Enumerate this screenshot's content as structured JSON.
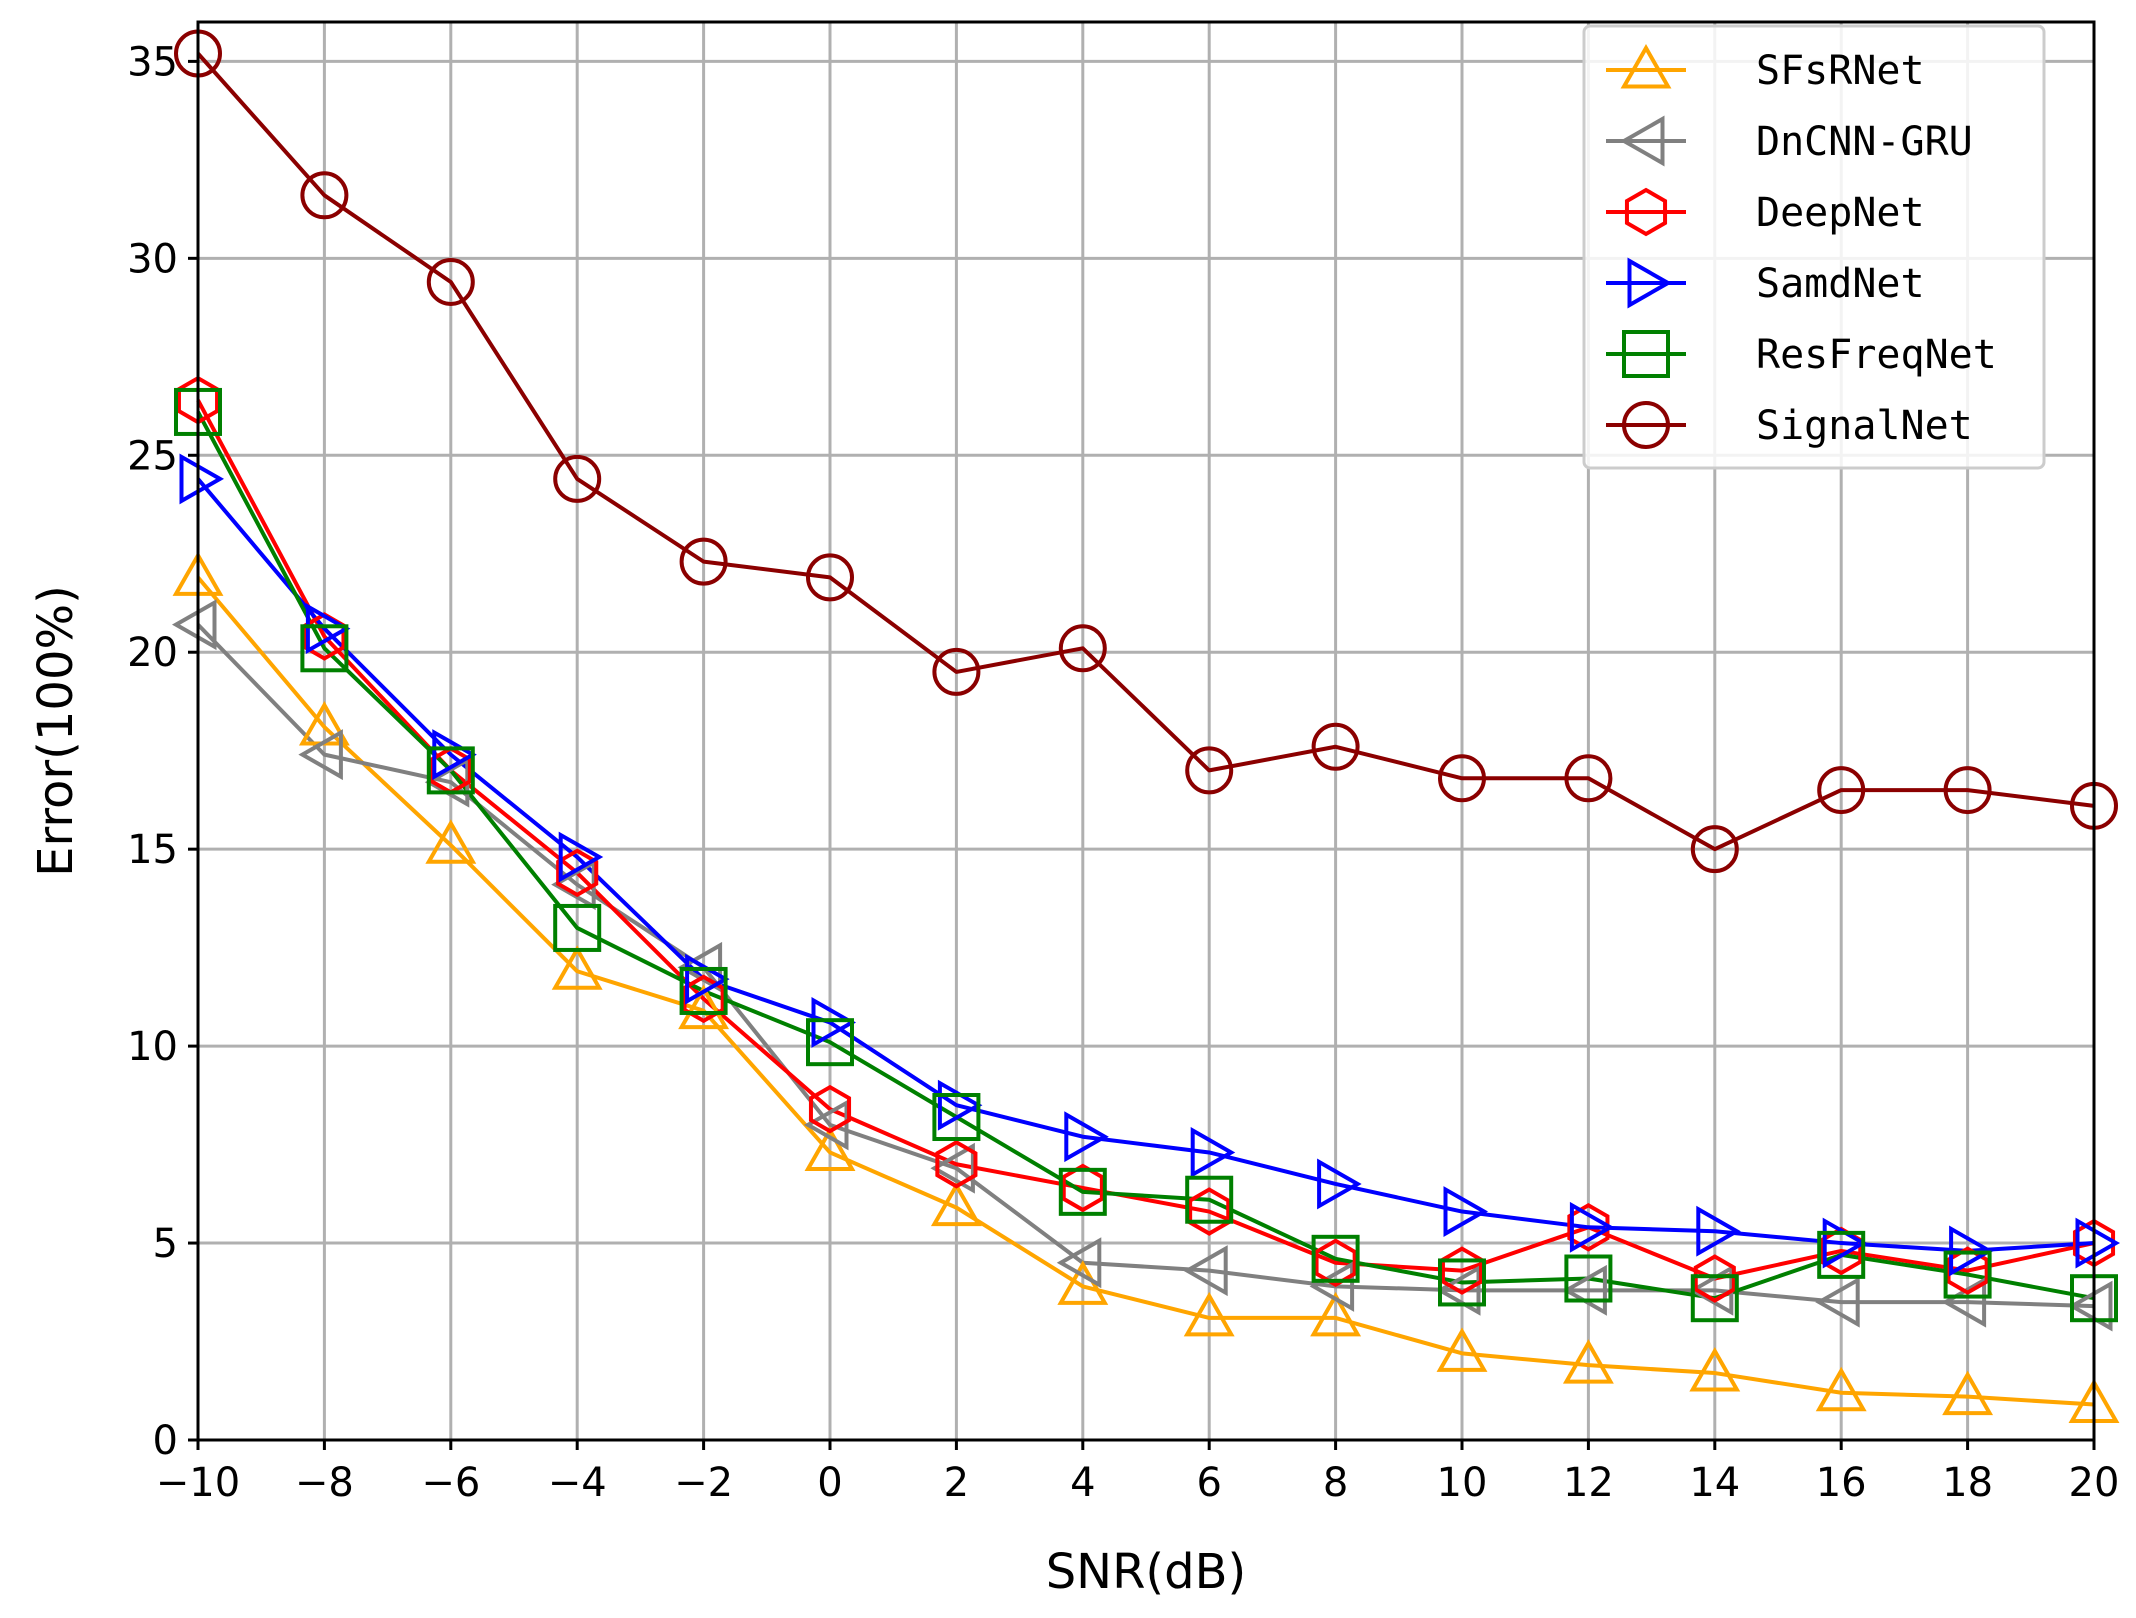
{
  "chart_data": {
    "type": "line",
    "title": "",
    "xlabel": "SNR(dB)",
    "ylabel": "Error(100%)",
    "xlim": [
      -10,
      20
    ],
    "ylim": [
      0,
      36
    ],
    "grid": true,
    "legend_position": "top-right",
    "x": [
      -10,
      -8,
      -6,
      -4,
      -2,
      0,
      2,
      4,
      6,
      8,
      10,
      12,
      14,
      16,
      18,
      20
    ],
    "x_tick_labels": [
      "−10",
      "−8",
      "−6",
      "−4",
      "−2",
      "0",
      "2",
      "4",
      "6",
      "8",
      "10",
      "12",
      "14",
      "16",
      "18",
      "20"
    ],
    "y_ticks": [
      0,
      5,
      10,
      15,
      20,
      25,
      30,
      35
    ],
    "y_tick_labels": [
      "0",
      "5",
      "10",
      "15",
      "20",
      "25",
      "30",
      "35"
    ],
    "series": [
      {
        "name": "SFsRNet",
        "color": "#ffa500",
        "marker": "triangle-up",
        "values": [
          21.9,
          18.1,
          15.1,
          11.9,
          10.9,
          7.3,
          5.9,
          3.9,
          3.1,
          3.1,
          2.2,
          1.9,
          1.7,
          1.2,
          1.1,
          0.9
        ]
      },
      {
        "name": "DnCNN-GRU",
        "color": "#808080",
        "marker": "triangle-left",
        "values": [
          20.7,
          17.4,
          16.7,
          14.1,
          12.0,
          8.0,
          6.9,
          4.5,
          4.3,
          3.9,
          3.8,
          3.8,
          3.8,
          3.5,
          3.5,
          3.4
        ]
      },
      {
        "name": "DeepNet",
        "color": "#ff0000",
        "marker": "hexagon",
        "values": [
          26.4,
          20.4,
          17.0,
          14.4,
          11.2,
          8.4,
          7.0,
          6.4,
          5.8,
          4.5,
          4.3,
          5.4,
          4.1,
          4.8,
          4.3,
          5.0
        ]
      },
      {
        "name": "SamdNet",
        "color": "#0000ff",
        "marker": "triangle-right",
        "values": [
          24.4,
          20.6,
          17.4,
          14.8,
          11.7,
          10.6,
          8.5,
          7.7,
          7.3,
          6.5,
          5.8,
          5.4,
          5.3,
          5.0,
          4.8,
          5.0
        ]
      },
      {
        "name": "ResFreqNet",
        "color": "#008000",
        "marker": "square",
        "values": [
          26.1,
          20.1,
          17.0,
          13.0,
          11.4,
          10.1,
          8.2,
          6.3,
          6.1,
          4.6,
          4.0,
          4.1,
          3.6,
          4.7,
          4.2,
          3.6
        ]
      },
      {
        "name": "SignalNet",
        "color": "#8b0000",
        "marker": "circle",
        "values": [
          35.2,
          31.6,
          29.4,
          24.4,
          22.3,
          21.9,
          19.5,
          20.1,
          17.0,
          17.6,
          16.8,
          16.8,
          15.0,
          16.5,
          16.5,
          16.1
        ]
      }
    ]
  }
}
